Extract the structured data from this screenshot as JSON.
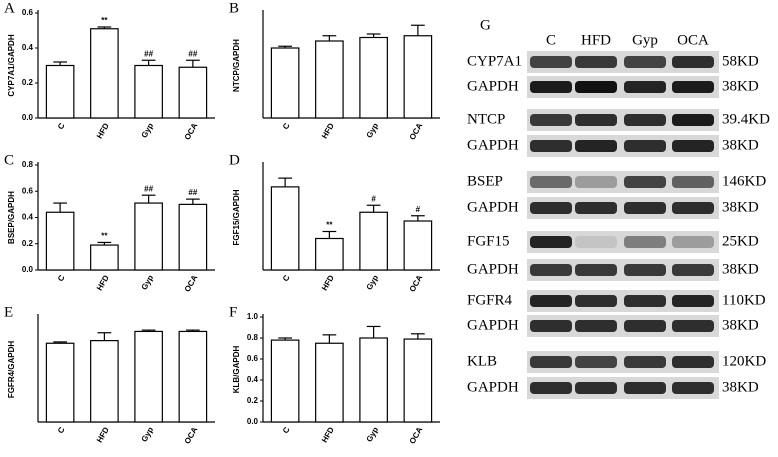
{
  "chart_data": [
    {
      "type": "bar",
      "panel_label": "A",
      "ylabel": "CYP7A1/GAPDH",
      "categories": [
        "C",
        "HFD",
        "Gyp",
        "OCA"
      ],
      "values": [
        0.3,
        0.51,
        0.3,
        0.29
      ],
      "errors": [
        0.02,
        0.01,
        0.03,
        0.04
      ],
      "annotations": [
        null,
        "**",
        "##",
        "##"
      ],
      "color": "#ffffff",
      "ylim": [
        0,
        0.6
      ],
      "yticks": [
        {
          "value": 0,
          "label": "0.0"
        },
        0.2,
        0.4,
        0.6
      ]
    },
    {
      "type": "bar",
      "panel_label": "B",
      "ylabel": "NTCP/GAPDH",
      "categories": [
        "C",
        "HFD",
        "Gyp",
        "OCA"
      ],
      "values": [
        0.4,
        0.44,
        0.46,
        0.47
      ],
      "errors": [
        0.01,
        0.03,
        0.02,
        0.06
      ],
      "annotations": [
        null,
        null,
        null,
        null
      ],
      "color": "#ffffff",
      "ylim": [
        0,
        0.6
      ]
    },
    {
      "type": "bar",
      "panel_label": "C",
      "ylabel": "BSEP/GAPDH",
      "categories": [
        "C",
        "HFD",
        "Gyp",
        "OCA"
      ],
      "values": [
        0.44,
        0.19,
        0.51,
        0.5
      ],
      "errors": [
        0.07,
        0.02,
        0.06,
        0.04
      ],
      "annotations": [
        null,
        "**",
        "##",
        "##"
      ],
      "color": "#ffffff",
      "ylim": [
        0,
        0.8
      ],
      "yticks": [
        {
          "value": 0,
          "label": "0.0"
        },
        0.2,
        0.4,
        0.6,
        0.8
      ]
    },
    {
      "type": "bar",
      "panel_label": "D",
      "ylabel": "FGF15/GAPDH",
      "categories": [
        "C",
        "HFD",
        "Gyp",
        "OCA"
      ],
      "values": [
        0.95,
        0.36,
        0.66,
        0.56
      ],
      "errors": [
        0.1,
        0.08,
        0.08,
        0.06
      ],
      "annotations": [
        null,
        "**",
        "#",
        "#"
      ],
      "color": "#ffffff",
      "ylim": [
        0,
        1.2
      ]
    },
    {
      "type": "bar",
      "panel_label": "E",
      "ylabel": "FGFR4/GAPDH",
      "categories": [
        "C",
        "HFD",
        "Gyp",
        "OCA"
      ],
      "values": [
        0.6,
        0.62,
        0.69,
        0.69
      ],
      "errors": [
        0.01,
        0.06,
        0.01,
        0.01
      ],
      "annotations": [
        null,
        null,
        null,
        null
      ],
      "color": "#ffffff",
      "ylim": [
        0,
        0.8
      ]
    },
    {
      "type": "bar",
      "panel_label": "F",
      "ylabel": "KLB/GAPDH",
      "categories": [
        "C",
        "HFD",
        "Gyp",
        "OCA"
      ],
      "values": [
        0.78,
        0.75,
        0.8,
        0.79
      ],
      "errors": [
        0.02,
        0.08,
        0.11,
        0.05
      ],
      "annotations": [
        null,
        null,
        null,
        null
      ],
      "color": "#ffffff",
      "ylim": [
        0,
        1.0
      ],
      "yticks": [
        {
          "value": 0,
          "label": "0.0"
        },
        0.2,
        0.4,
        0.6,
        0.8,
        {
          "value": 1,
          "label": "1.0"
        }
      ]
    }
  ],
  "blot": {
    "panel_label": "G",
    "lanes": [
      "C",
      "HFD",
      "Gyp",
      "OCA"
    ],
    "rows": [
      {
        "protein": "CYP7A1",
        "size": "58KD"
      },
      {
        "protein": "GAPDH",
        "size": "38KD"
      },
      {
        "protein": "NTCP",
        "size": "39.4KD"
      },
      {
        "protein": "GAPDH",
        "size": "38KD"
      },
      {
        "protein": "BSEP",
        "size": "146KD"
      },
      {
        "protein": "GAPDH",
        "size": "38KD"
      },
      {
        "protein": "FGF15",
        "size": "25KD"
      },
      {
        "protein": "GAPDH",
        "size": "38KD"
      },
      {
        "protein": "FGFR4",
        "size": "110KD"
      },
      {
        "protein": "GAPDH",
        "size": "38KD"
      },
      {
        "protein": "KLB",
        "size": "120KD"
      },
      {
        "protein": "GAPDH",
        "size": "38KD"
      }
    ]
  }
}
